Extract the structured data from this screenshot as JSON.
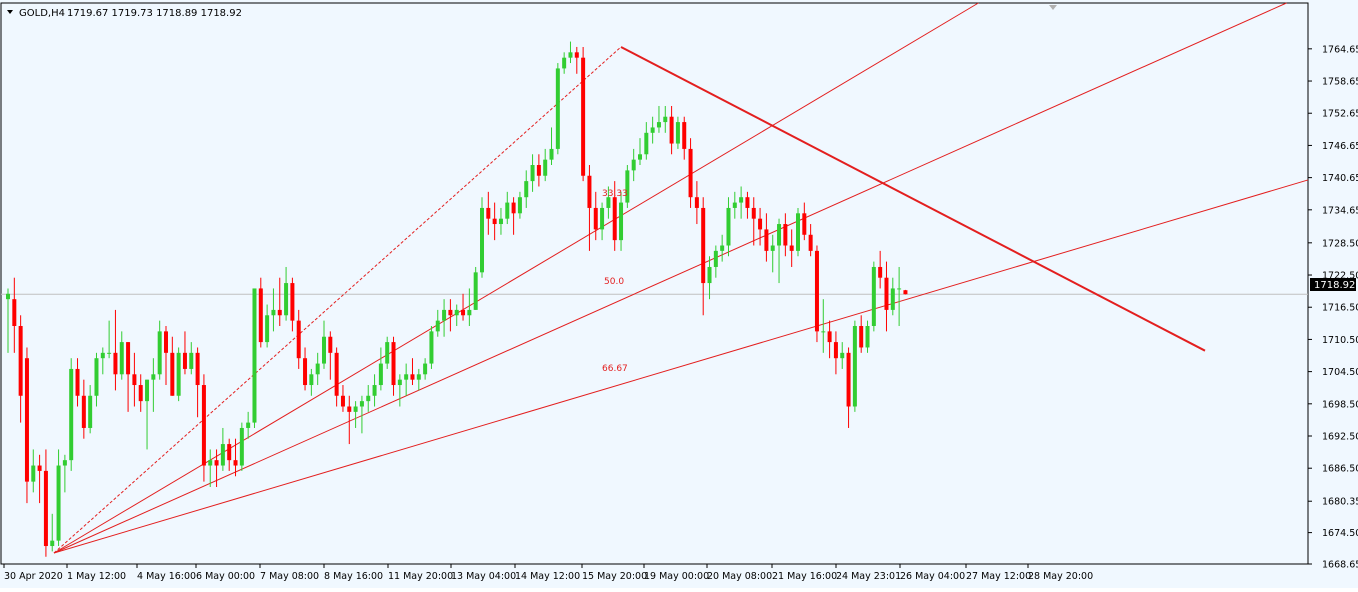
{
  "header": {
    "symbol": "GOLD,H4",
    "ohlc": "1719.67 1719.73 1718.89 1718.92"
  },
  "current_price_label": "1718.92",
  "fib_labels": [
    "33.33",
    "50.0",
    "66.67"
  ],
  "colors": {
    "background": "#F0F8FF",
    "bull": "#32CD32",
    "bear": "#FF0000",
    "fib": "#E31F1F",
    "trendline": "#E31F1F",
    "price_line": "#C0C0C0",
    "axis_text": "#000000"
  },
  "chart_data": {
    "type": "candlestick",
    "timeframe": "H4",
    "y_range": [
      1668.65,
      1767.6
    ],
    "y_ticks": [
      1668.65,
      1674.5,
      1680.35,
      1686.5,
      1692.5,
      1698.5,
      1704.5,
      1710.5,
      1716.5,
      1722.5,
      1728.5,
      1734.65,
      1740.65,
      1746.65,
      1752.65,
      1758.65,
      1764.65
    ],
    "x_ticks": [
      "30 Apr 2020",
      "1 May 12:00",
      "4 May 16:00",
      "6 May 00:00",
      "7 May 08:00",
      "8 May 16:00",
      "11 May 20:00",
      "13 May 04:00",
      "14 May 12:00",
      "15 May 20:00",
      "19 May 00:00",
      "20 May 08:00",
      "21 May 16:00",
      "24 May 23:01",
      "26 May 04:00",
      "27 May 12:00",
      "28 May 20:00"
    ],
    "current_price": 1718.92,
    "candles": [
      {
        "o": 1718,
        "h": 1720,
        "l": 1708,
        "c": 1719
      },
      {
        "o": 1718,
        "h": 1722,
        "l": 1708,
        "c": 1713
      },
      {
        "o": 1713,
        "h": 1715,
        "l": 1695,
        "c": 1700
      },
      {
        "o": 1707,
        "h": 1709,
        "l": 1680,
        "c": 1684
      },
      {
        "o": 1684,
        "h": 1690,
        "l": 1682,
        "c": 1687
      },
      {
        "o": 1687,
        "h": 1689,
        "l": 1680,
        "c": 1686
      },
      {
        "o": 1686,
        "h": 1690,
        "l": 1670,
        "c": 1672
      },
      {
        "o": 1672,
        "h": 1678,
        "l": 1671,
        "c": 1673
      },
      {
        "o": 1673,
        "h": 1690,
        "l": 1672,
        "c": 1687
      },
      {
        "o": 1687,
        "h": 1689,
        "l": 1682,
        "c": 1688
      },
      {
        "o": 1688,
        "h": 1707,
        "l": 1686,
        "c": 1705
      },
      {
        "o": 1705,
        "h": 1707,
        "l": 1698,
        "c": 1700
      },
      {
        "o": 1700,
        "h": 1703,
        "l": 1692,
        "c": 1694
      },
      {
        "o": 1694,
        "h": 1702,
        "l": 1693,
        "c": 1700
      },
      {
        "o": 1700,
        "h": 1708,
        "l": 1698,
        "c": 1707
      },
      {
        "o": 1707,
        "h": 1709,
        "l": 1704,
        "c": 1708
      },
      {
        "o": 1708,
        "h": 1714,
        "l": 1707,
        "c": 1708
      },
      {
        "o": 1708,
        "h": 1716,
        "l": 1701,
        "c": 1704
      },
      {
        "o": 1704,
        "h": 1712,
        "l": 1703,
        "c": 1710
      },
      {
        "o": 1710,
        "h": 1710,
        "l": 1697,
        "c": 1704
      },
      {
        "o": 1704,
        "h": 1708,
        "l": 1698,
        "c": 1702
      },
      {
        "o": 1702,
        "h": 1704,
        "l": 1697,
        "c": 1699
      },
      {
        "o": 1699,
        "h": 1703,
        "l": 1690,
        "c": 1703
      },
      {
        "o": 1703,
        "h": 1707,
        "l": 1697,
        "c": 1704
      },
      {
        "o": 1704,
        "h": 1714,
        "l": 1703,
        "c": 1712
      },
      {
        "o": 1712,
        "h": 1713,
        "l": 1702,
        "c": 1708
      },
      {
        "o": 1708,
        "h": 1711,
        "l": 1700,
        "c": 1700
      },
      {
        "o": 1700,
        "h": 1709,
        "l": 1699,
        "c": 1708
      },
      {
        "o": 1708,
        "h": 1712,
        "l": 1704,
        "c": 1705
      },
      {
        "o": 1705,
        "h": 1710,
        "l": 1704,
        "c": 1708
      },
      {
        "o": 1708,
        "h": 1709,
        "l": 1696,
        "c": 1702
      },
      {
        "o": 1702,
        "h": 1704,
        "l": 1684,
        "c": 1687
      },
      {
        "o": 1687,
        "h": 1690,
        "l": 1683,
        "c": 1688
      },
      {
        "o": 1688,
        "h": 1690,
        "l": 1683,
        "c": 1687
      },
      {
        "o": 1687,
        "h": 1694,
        "l": 1686,
        "c": 1691
      },
      {
        "o": 1691,
        "h": 1692,
        "l": 1686,
        "c": 1688
      },
      {
        "o": 1688,
        "h": 1692,
        "l": 1685,
        "c": 1687
      },
      {
        "o": 1687,
        "h": 1695,
        "l": 1686,
        "c": 1694
      },
      {
        "o": 1694,
        "h": 1697,
        "l": 1692,
        "c": 1695
      },
      {
        "o": 1695,
        "h": 1720,
        "l": 1694,
        "c": 1720
      },
      {
        "o": 1720,
        "h": 1722,
        "l": 1709,
        "c": 1710
      },
      {
        "o": 1710,
        "h": 1717,
        "l": 1709,
        "c": 1715
      },
      {
        "o": 1715,
        "h": 1720,
        "l": 1712,
        "c": 1716
      },
      {
        "o": 1716,
        "h": 1722,
        "l": 1713,
        "c": 1715
      },
      {
        "o": 1715,
        "h": 1724,
        "l": 1714,
        "c": 1721
      },
      {
        "o": 1721,
        "h": 1722,
        "l": 1712,
        "c": 1714
      },
      {
        "o": 1714,
        "h": 1716,
        "l": 1705,
        "c": 1707
      },
      {
        "o": 1707,
        "h": 1709,
        "l": 1701,
        "c": 1702
      },
      {
        "o": 1702,
        "h": 1705,
        "l": 1700,
        "c": 1704
      },
      {
        "o": 1704,
        "h": 1708,
        "l": 1702,
        "c": 1706
      },
      {
        "o": 1706,
        "h": 1714,
        "l": 1705,
        "c": 1711
      },
      {
        "o": 1711,
        "h": 1712,
        "l": 1703,
        "c": 1708
      },
      {
        "o": 1708,
        "h": 1709,
        "l": 1698,
        "c": 1700
      },
      {
        "o": 1700,
        "h": 1702,
        "l": 1697,
        "c": 1698
      },
      {
        "o": 1698,
        "h": 1700,
        "l": 1691,
        "c": 1697
      },
      {
        "o": 1697,
        "h": 1699,
        "l": 1694,
        "c": 1698
      },
      {
        "o": 1698,
        "h": 1700,
        "l": 1693,
        "c": 1699
      },
      {
        "o": 1699,
        "h": 1702,
        "l": 1697,
        "c": 1700
      },
      {
        "o": 1700,
        "h": 1704,
        "l": 1698,
        "c": 1702
      },
      {
        "o": 1702,
        "h": 1709,
        "l": 1701,
        "c": 1706
      },
      {
        "o": 1706,
        "h": 1711,
        "l": 1705,
        "c": 1710
      },
      {
        "o": 1710,
        "h": 1711,
        "l": 1700,
        "c": 1702
      },
      {
        "o": 1702,
        "h": 1704,
        "l": 1698,
        "c": 1703
      },
      {
        "o": 1703,
        "h": 1706,
        "l": 1700,
        "c": 1704
      },
      {
        "o": 1704,
        "h": 1707,
        "l": 1702,
        "c": 1703
      },
      {
        "o": 1703,
        "h": 1705,
        "l": 1701,
        "c": 1704
      },
      {
        "o": 1704,
        "h": 1707,
        "l": 1703,
        "c": 1706
      },
      {
        "o": 1706,
        "h": 1713,
        "l": 1705,
        "c": 1712
      },
      {
        "o": 1712,
        "h": 1716,
        "l": 1711,
        "c": 1714
      },
      {
        "o": 1714,
        "h": 1718,
        "l": 1711,
        "c": 1716
      },
      {
        "o": 1716,
        "h": 1718,
        "l": 1712,
        "c": 1715
      },
      {
        "o": 1715,
        "h": 1717,
        "l": 1713,
        "c": 1716
      },
      {
        "o": 1716,
        "h": 1719,
        "l": 1714,
        "c": 1715
      },
      {
        "o": 1715,
        "h": 1720,
        "l": 1713,
        "c": 1716
      },
      {
        "o": 1716,
        "h": 1724,
        "l": 1716,
        "c": 1723
      },
      {
        "o": 1723,
        "h": 1737,
        "l": 1722,
        "c": 1735
      },
      {
        "o": 1735,
        "h": 1738,
        "l": 1730,
        "c": 1733
      },
      {
        "o": 1733,
        "h": 1736,
        "l": 1729,
        "c": 1732
      },
      {
        "o": 1732,
        "h": 1735,
        "l": 1730,
        "c": 1733
      },
      {
        "o": 1733,
        "h": 1738,
        "l": 1732,
        "c": 1736
      },
      {
        "o": 1736,
        "h": 1737,
        "l": 1730,
        "c": 1734
      },
      {
        "o": 1734,
        "h": 1738,
        "l": 1733,
        "c": 1737
      },
      {
        "o": 1737,
        "h": 1742,
        "l": 1735,
        "c": 1740
      },
      {
        "o": 1740,
        "h": 1745,
        "l": 1738,
        "c": 1743
      },
      {
        "o": 1743,
        "h": 1745,
        "l": 1739,
        "c": 1741
      },
      {
        "o": 1741,
        "h": 1746,
        "l": 1740,
        "c": 1744
      },
      {
        "o": 1744,
        "h": 1750,
        "l": 1743,
        "c": 1746
      },
      {
        "o": 1746,
        "h": 1762,
        "l": 1745,
        "c": 1761
      },
      {
        "o": 1761,
        "h": 1764,
        "l": 1760,
        "c": 1763
      },
      {
        "o": 1763,
        "h": 1766,
        "l": 1762,
        "c": 1764
      },
      {
        "o": 1764,
        "h": 1765,
        "l": 1760,
        "c": 1763
      },
      {
        "o": 1763,
        "h": 1765,
        "l": 1740,
        "c": 1741
      },
      {
        "o": 1741,
        "h": 1743,
        "l": 1727,
        "c": 1735
      },
      {
        "o": 1735,
        "h": 1738,
        "l": 1729,
        "c": 1731
      },
      {
        "o": 1731,
        "h": 1736,
        "l": 1729,
        "c": 1735
      },
      {
        "o": 1735,
        "h": 1739,
        "l": 1733,
        "c": 1737
      },
      {
        "o": 1737,
        "h": 1740,
        "l": 1727,
        "c": 1729
      },
      {
        "o": 1729,
        "h": 1738,
        "l": 1727,
        "c": 1736
      },
      {
        "o": 1736,
        "h": 1743,
        "l": 1735,
        "c": 1742
      },
      {
        "o": 1742,
        "h": 1746,
        "l": 1740,
        "c": 1744
      },
      {
        "o": 1744,
        "h": 1748,
        "l": 1743,
        "c": 1745
      },
      {
        "o": 1745,
        "h": 1751,
        "l": 1744,
        "c": 1749
      },
      {
        "o": 1749,
        "h": 1752,
        "l": 1747,
        "c": 1750
      },
      {
        "o": 1750,
        "h": 1754,
        "l": 1749,
        "c": 1751
      },
      {
        "o": 1751,
        "h": 1754,
        "l": 1749,
        "c": 1752
      },
      {
        "o": 1752,
        "h": 1754,
        "l": 1745,
        "c": 1747
      },
      {
        "o": 1747,
        "h": 1752,
        "l": 1746,
        "c": 1751
      },
      {
        "o": 1751,
        "h": 1752,
        "l": 1744,
        "c": 1746
      },
      {
        "o": 1746,
        "h": 1748,
        "l": 1735,
        "c": 1737
      },
      {
        "o": 1737,
        "h": 1740,
        "l": 1732,
        "c": 1735
      },
      {
        "o": 1735,
        "h": 1737,
        "l": 1715,
        "c": 1721
      },
      {
        "o": 1721,
        "h": 1726,
        "l": 1718,
        "c": 1724
      },
      {
        "o": 1724,
        "h": 1728,
        "l": 1722,
        "c": 1727
      },
      {
        "o": 1727,
        "h": 1730,
        "l": 1725,
        "c": 1728
      },
      {
        "o": 1728,
        "h": 1737,
        "l": 1726,
        "c": 1735
      },
      {
        "o": 1735,
        "h": 1738,
        "l": 1733,
        "c": 1736
      },
      {
        "o": 1736,
        "h": 1739,
        "l": 1733,
        "c": 1737
      },
      {
        "o": 1737,
        "h": 1738,
        "l": 1733,
        "c": 1735
      },
      {
        "o": 1735,
        "h": 1737,
        "l": 1728,
        "c": 1733
      },
      {
        "o": 1733,
        "h": 1735,
        "l": 1728,
        "c": 1731
      },
      {
        "o": 1731,
        "h": 1734,
        "l": 1725,
        "c": 1727
      },
      {
        "o": 1727,
        "h": 1730,
        "l": 1723,
        "c": 1728
      },
      {
        "o": 1728,
        "h": 1733,
        "l": 1721,
        "c": 1732
      },
      {
        "o": 1732,
        "h": 1734,
        "l": 1726,
        "c": 1728
      },
      {
        "o": 1728,
        "h": 1731,
        "l": 1724,
        "c": 1727
      },
      {
        "o": 1727,
        "h": 1735,
        "l": 1726,
        "c": 1734
      },
      {
        "o": 1734,
        "h": 1736,
        "l": 1729,
        "c": 1730
      },
      {
        "o": 1730,
        "h": 1732,
        "l": 1726,
        "c": 1727
      },
      {
        "o": 1727,
        "h": 1728,
        "l": 1710,
        "c": 1712
      },
      {
        "o": 1712,
        "h": 1718,
        "l": 1708,
        "c": 1712
      },
      {
        "o": 1712,
        "h": 1714,
        "l": 1707,
        "c": 1710
      },
      {
        "o": 1710,
        "h": 1712,
        "l": 1704,
        "c": 1707
      },
      {
        "o": 1707,
        "h": 1710,
        "l": 1705,
        "c": 1708
      },
      {
        "o": 1708,
        "h": 1709,
        "l": 1694,
        "c": 1698
      },
      {
        "o": 1698,
        "h": 1714,
        "l": 1697,
        "c": 1713
      },
      {
        "o": 1713,
        "h": 1715,
        "l": 1708,
        "c": 1709
      },
      {
        "o": 1709,
        "h": 1714,
        "l": 1708,
        "c": 1713
      },
      {
        "o": 1713,
        "h": 1725,
        "l": 1712,
        "c": 1724
      },
      {
        "o": 1724,
        "h": 1727,
        "l": 1720,
        "c": 1722
      },
      {
        "o": 1722,
        "h": 1725,
        "l": 1712,
        "c": 1716
      },
      {
        "o": 1716,
        "h": 1722,
        "l": 1715,
        "c": 1720
      },
      {
        "o": 1720,
        "h": 1724,
        "l": 1713,
        "c": 1720
      },
      {
        "o": 1719.67,
        "h": 1719.73,
        "l": 1718.89,
        "c": 1718.92
      }
    ]
  }
}
